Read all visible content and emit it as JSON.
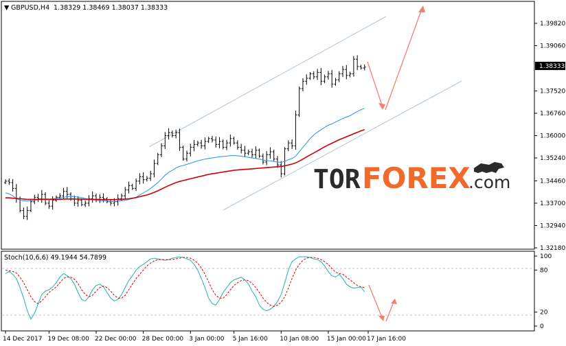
{
  "header": {
    "arrow_glyph": "▼",
    "symbol": "GBPUSD,H4",
    "ohlc": "1.38329 1.38469 1.38037 1.38333"
  },
  "price_badge": "1.38333",
  "stoch_label": "Stoch(10,6,6) 49.1944 54.7899",
  "logo": {
    "part1": "TOR",
    "part2": "FOREX",
    "part3": ".com"
  },
  "colors": {
    "blue_ma": "#1e90ff",
    "red_ma": "#cc0000",
    "stoch_main": "#20b2aa",
    "stoch_signal": "#dd0000",
    "arrows": "#f08070",
    "channel": "#b0c4d8",
    "logo_dark": "#2b2b2b",
    "logo_accent": "#f26a2a"
  },
  "chart_data": [
    {
      "type": "candlestick",
      "symbol": "GBPUSD",
      "timeframe": "H4",
      "ylim": [
        1.3218,
        1.3989
      ],
      "y_ticks": [
        "1.39820",
        "1.39060",
        "1.38333",
        "1.37520",
        "1.36760",
        "1.36000",
        "1.35240",
        "1.34460",
        "1.33700",
        "1.32940",
        "1.32180"
      ],
      "x_ticks": [
        "14 Dec 2017",
        "19 Dec 08:00",
        "22 Dec 00:00",
        "28 Dec 00:00",
        "3 Jan 00:00",
        "5 Jan 16:00",
        "10 Jan 08:00",
        "15 Jan 00:00",
        "17 Jan 16:00"
      ],
      "current_price": 1.38333,
      "grid": false,
      "close": [
        1.3445,
        1.344,
        1.342,
        1.3385,
        1.3345,
        1.3325,
        1.3345,
        1.3375,
        1.339,
        1.3385,
        1.34,
        1.337,
        1.336,
        1.338,
        1.339,
        1.3395,
        1.341,
        1.34,
        1.3385,
        1.337,
        1.338,
        1.3365,
        1.337,
        1.3385,
        1.3395,
        1.338,
        1.339,
        1.3385,
        1.3375,
        1.337,
        1.3375,
        1.3385,
        1.3395,
        1.3415,
        1.343,
        1.342,
        1.3445,
        1.346,
        1.345,
        1.3455,
        1.347,
        1.3505,
        1.3535,
        1.3565,
        1.36,
        1.361,
        1.36,
        1.361,
        1.356,
        1.352,
        1.354,
        1.356,
        1.357,
        1.3575,
        1.3565,
        1.358,
        1.359,
        1.3585,
        1.357,
        1.358,
        1.356,
        1.3575,
        1.359,
        1.3575,
        1.356,
        1.355,
        1.354,
        1.3545,
        1.3535,
        1.355,
        1.353,
        1.351,
        1.3535,
        1.3545,
        1.352,
        1.35,
        1.347,
        1.3555,
        1.3575,
        1.3565,
        1.367,
        1.376,
        1.3785,
        1.3795,
        1.381,
        1.38,
        1.3815,
        1.3785,
        1.38,
        1.381,
        1.3775,
        1.379,
        1.381,
        1.3825,
        1.3805,
        1.381,
        1.386,
        1.3835,
        1.383,
        1.3833
      ],
      "series": [
        {
          "name": "MA fast",
          "values": [
            1.3405,
            1.3402,
            1.3395,
            1.3385,
            1.338,
            1.3378,
            1.3377,
            1.3378,
            1.338,
            1.3382,
            1.3384,
            1.3385,
            1.3384,
            1.3385,
            1.3386,
            1.3388,
            1.339,
            1.3392,
            1.3393,
            1.3392,
            1.3391,
            1.3389,
            1.3386,
            1.3384,
            1.3382,
            1.338,
            1.3379,
            1.3378,
            1.3377,
            1.3376,
            1.3376,
            1.3377,
            1.3378,
            1.338,
            1.3382,
            1.3386,
            1.339,
            1.3398,
            1.3405,
            1.3412,
            1.342,
            1.343,
            1.344,
            1.3452,
            1.3465,
            1.3475,
            1.3482,
            1.349,
            1.3495,
            1.3498,
            1.3502,
            1.3506,
            1.351,
            1.3514,
            1.3517,
            1.352,
            1.3522,
            1.3524,
            1.3526,
            1.3528,
            1.3529,
            1.353,
            1.3532,
            1.3532,
            1.3531,
            1.353,
            1.3528,
            1.3526,
            1.3524,
            1.3522,
            1.352,
            1.3517,
            1.3515,
            1.3514,
            1.3512,
            1.351,
            1.3509,
            1.3512,
            1.3518,
            1.3522,
            1.353,
            1.3545,
            1.356,
            1.3575,
            1.359,
            1.3602,
            1.3612,
            1.362,
            1.3628,
            1.3635,
            1.364,
            1.3646,
            1.3652,
            1.3658,
            1.3663,
            1.3668,
            1.3675,
            1.3682,
            1.3688,
            1.3693
          ]
        },
        {
          "name": "MA slow",
          "values": [
            1.3388,
            1.3388,
            1.3387,
            1.3386,
            1.3385,
            1.3384,
            1.3383,
            1.3383,
            1.3383,
            1.3383,
            1.3383,
            1.3383,
            1.3383,
            1.3383,
            1.3383,
            1.3383,
            1.3384,
            1.3384,
            1.3384,
            1.3384,
            1.3384,
            1.3384,
            1.3383,
            1.3383,
            1.3383,
            1.3383,
            1.3383,
            1.3382,
            1.3382,
            1.3382,
            1.3382,
            1.3383,
            1.3383,
            1.3384,
            1.3385,
            1.3387,
            1.3389,
            1.3392,
            1.3395,
            1.3398,
            1.3402,
            1.3407,
            1.3412,
            1.3418,
            1.3424,
            1.343,
            1.3435,
            1.344,
            1.3444,
            1.3447,
            1.345,
            1.3453,
            1.3456,
            1.3459,
            1.3462,
            1.3465,
            1.3468,
            1.347,
            1.3472,
            1.3474,
            1.3476,
            1.3478,
            1.348,
            1.3482,
            1.3483,
            1.3484,
            1.3485,
            1.3486,
            1.3487,
            1.3488,
            1.3489,
            1.349,
            1.3491,
            1.3492,
            1.3493,
            1.3494,
            1.3495,
            1.3497,
            1.35,
            1.3503,
            1.3507,
            1.3513,
            1.352,
            1.3527,
            1.3534,
            1.3541,
            1.3548,
            1.3555,
            1.3562,
            1.3568,
            1.3574,
            1.358,
            1.3586,
            1.3591,
            1.3596,
            1.3601,
            1.3606,
            1.3611,
            1.3616,
            1.362
          ]
        }
      ]
    },
    {
      "type": "line",
      "name": "Stoch(10,6,6)",
      "ylim": [
        0,
        100
      ],
      "y_ticks": [
        "100",
        "80",
        "20",
        "0"
      ],
      "levels": [
        80,
        20
      ],
      "series": [
        {
          "name": "Main",
          "values": [
            75,
            78,
            74,
            68,
            55,
            40,
            22,
            10,
            18,
            32,
            45,
            50,
            52,
            56,
            62,
            70,
            75,
            72,
            68,
            60,
            48,
            38,
            36,
            42,
            52,
            58,
            60,
            56,
            48,
            40,
            36,
            38,
            45,
            55,
            65,
            72,
            80,
            85,
            88,
            92,
            96,
            97,
            96,
            95,
            94,
            95,
            97,
            98,
            99,
            98,
            96,
            94,
            88,
            80,
            68,
            55,
            40,
            32,
            30,
            38,
            48,
            55,
            62,
            66,
            68,
            70,
            66,
            60,
            50,
            42,
            30,
            24,
            22,
            24,
            28,
            35,
            45,
            62,
            80,
            92,
            96,
            99,
            99,
            99,
            98,
            96,
            95,
            92,
            86,
            78,
            72,
            70,
            74,
            68,
            60,
            56,
            54,
            55,
            56,
            49
          ]
        },
        {
          "name": "Signal",
          "values": [
            80,
            79,
            78,
            76,
            70,
            62,
            52,
            42,
            35,
            32,
            36,
            42,
            48,
            52,
            56,
            62,
            68,
            70,
            70,
            67,
            61,
            52,
            45,
            42,
            44,
            50,
            55,
            57,
            55,
            50,
            44,
            40,
            40,
            44,
            52,
            60,
            68,
            74,
            80,
            86,
            90,
            93,
            95,
            95,
            95,
            95,
            95,
            96,
            97,
            98,
            98,
            97,
            94,
            90,
            83,
            74,
            63,
            52,
            44,
            40,
            40,
            45,
            52,
            58,
            62,
            65,
            66,
            65,
            61,
            55,
            48,
            40,
            34,
            30,
            28,
            30,
            34,
            42,
            54,
            68,
            80,
            88,
            94,
            97,
            98,
            98,
            97,
            95,
            92,
            88,
            82,
            77,
            75,
            74,
            70,
            66,
            62,
            58,
            56,
            55
          ]
        }
      ]
    }
  ]
}
